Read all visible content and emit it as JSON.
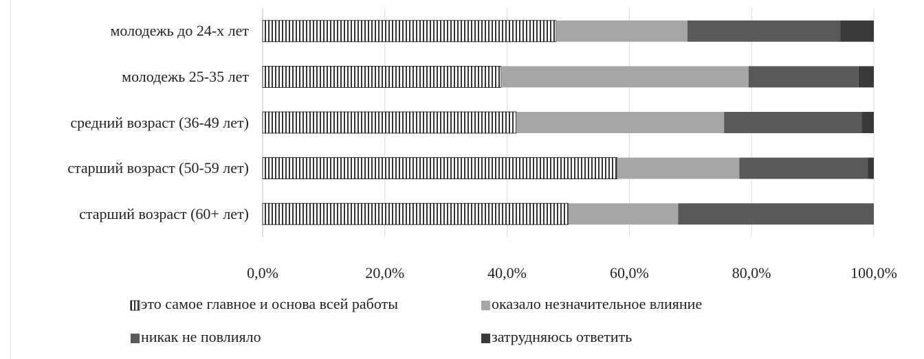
{
  "chart_data": {
    "type": "stacked-barh",
    "categories": [
      "молодежь до 24-х лет",
      "молодежь 25-35 лет",
      "средний возраст (36-49 лет)",
      "старший возраст (50-59 лет)",
      "старший возраст (60+ лет)"
    ],
    "series": [
      {
        "name": "это самое главное и основа всей работы",
        "color": "#000000",
        "pattern": "vertical-lines",
        "values": [
          48,
          39,
          41.5,
          58,
          50
        ]
      },
      {
        "name": "оказало незначительное влияние",
        "color": "#a6a6a6",
        "values": [
          21.5,
          40.5,
          34,
          20,
          18
        ]
      },
      {
        "name": "никак не повлияло",
        "color": "#595959",
        "values": [
          25,
          18,
          22.5,
          21,
          32
        ]
      },
      {
        "name": "затрудняюсь ответить",
        "color": "#3a3a3a",
        "values": [
          5.5,
          2.5,
          2,
          1,
          0
        ]
      }
    ],
    "xlim": [
      0,
      100
    ],
    "xticks": [
      {
        "value": 0,
        "label": "0,0%"
      },
      {
        "value": 20,
        "label": "20,0%"
      },
      {
        "value": 40,
        "label": "40,0%"
      },
      {
        "value": 60,
        "label": "60,0%"
      },
      {
        "value": 80,
        "label": "80,0%"
      },
      {
        "value": 100,
        "label": "100,0%"
      }
    ],
    "grid": true,
    "legend": "bottom"
  }
}
